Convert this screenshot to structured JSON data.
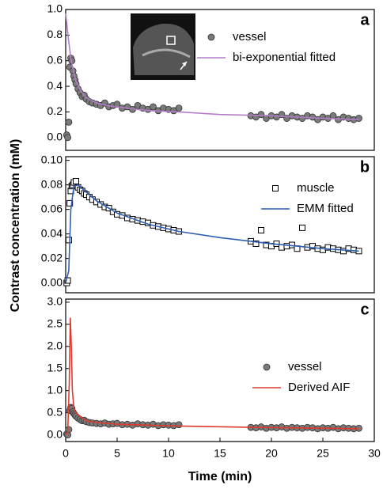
{
  "ylabel": "Contrast concentration (mM)",
  "xlabel": "Time (min)",
  "chart_data": [
    {
      "type": "scatter",
      "label": "a",
      "xlim": [
        0,
        30
      ],
      "ylim": [
        -0.1,
        1.0
      ],
      "yticks": [
        {
          "value": 0,
          "label": "0.0"
        },
        0.2,
        0.4,
        0.6,
        0.8,
        {
          "value": 1,
          "label": "1.0"
        }
      ],
      "series": [
        {
          "name": "vessel",
          "type": "scatter",
          "marker": "circle",
          "color": "#7a7a7a",
          "x": [
            0.1,
            0.2,
            0.3,
            0.4,
            0.5,
            0.6,
            0.7,
            0.8,
            0.9,
            1.0,
            1.2,
            1.4,
            1.6,
            1.8,
            2.0,
            2.3,
            2.6,
            3.0,
            3.4,
            3.8,
            4.2,
            4.6,
            5.0,
            5.5,
            6.0,
            6.5,
            7.0,
            7.5,
            8.0,
            8.5,
            9.0,
            9.5,
            10.0,
            10.5,
            11.0,
            18.0,
            18.5,
            19.0,
            19.5,
            20.0,
            20.5,
            21.0,
            21.5,
            22.0,
            22.5,
            23.0,
            23.5,
            24.0,
            24.5,
            25.0,
            25.5,
            26.0,
            26.5,
            27.0,
            27.5,
            28.0,
            28.5
          ],
          "values": [
            0.02,
            0.0,
            0.12,
            0.55,
            0.62,
            0.6,
            0.52,
            0.48,
            0.45,
            0.42,
            0.38,
            0.35,
            0.32,
            0.33,
            0.3,
            0.28,
            0.27,
            0.26,
            0.25,
            0.27,
            0.24,
            0.25,
            0.26,
            0.23,
            0.24,
            0.22,
            0.25,
            0.23,
            0.22,
            0.24,
            0.21,
            0.23,
            0.22,
            0.21,
            0.23,
            0.17,
            0.16,
            0.18,
            0.15,
            0.17,
            0.16,
            0.18,
            0.15,
            0.17,
            0.16,
            0.15,
            0.17,
            0.16,
            0.14,
            0.16,
            0.15,
            0.17,
            0.14,
            0.16,
            0.15,
            0.14,
            0.15
          ]
        },
        {
          "name": "bi-exponential fitted",
          "type": "line",
          "color": "#b47cc8",
          "x": [
            0,
            0.25,
            0.5,
            0.75,
            1,
            1.5,
            2,
            3,
            4,
            6,
            8,
            11,
            15,
            20,
            25,
            28.5
          ],
          "values": [
            0.97,
            0.78,
            0.62,
            0.52,
            0.44,
            0.36,
            0.31,
            0.27,
            0.25,
            0.23,
            0.21,
            0.2,
            0.18,
            0.17,
            0.15,
            0.14
          ]
        }
      ]
    },
    {
      "type": "scatter",
      "label": "b",
      "xlim": [
        0,
        30
      ],
      "ylim": [
        -0.008,
        0.103
      ],
      "yticks": [
        {
          "value": 0,
          "label": "0.00"
        },
        0.02,
        0.04,
        0.06,
        0.08,
        {
          "value": 0.1,
          "label": "0.10"
        }
      ],
      "series": [
        {
          "name": "muscle",
          "type": "scatter",
          "marker": "square",
          "color": "#ffffff",
          "x": [
            0.1,
            0.2,
            0.3,
            0.4,
            0.5,
            0.6,
            0.7,
            0.8,
            1.0,
            1.2,
            1.4,
            1.6,
            1.8,
            2.0,
            2.3,
            2.6,
            3.0,
            3.4,
            3.8,
            4.2,
            4.6,
            5.0,
            5.5,
            6.0,
            6.5,
            7.0,
            7.5,
            8.0,
            8.5,
            9.0,
            9.5,
            10.0,
            10.5,
            11.0,
            18.0,
            18.5,
            19.0,
            19.5,
            20.0,
            20.5,
            21.0,
            21.5,
            22.0,
            22.5,
            23.0,
            23.5,
            24.0,
            24.5,
            25.0,
            25.5,
            26.0,
            26.5,
            27.0,
            27.5,
            28.0,
            28.5
          ],
          "values": [
            0.0,
            0.002,
            0.035,
            0.065,
            0.075,
            0.079,
            0.08,
            0.082,
            0.083,
            0.078,
            0.076,
            0.075,
            0.073,
            0.072,
            0.07,
            0.068,
            0.066,
            0.064,
            0.062,
            0.061,
            0.058,
            0.056,
            0.055,
            0.053,
            0.052,
            0.051,
            0.05,
            0.049,
            0.047,
            0.046,
            0.045,
            0.044,
            0.043,
            0.042,
            0.034,
            0.032,
            0.043,
            0.031,
            0.03,
            0.032,
            0.029,
            0.03,
            0.031,
            0.028,
            0.045,
            0.029,
            0.03,
            0.028,
            0.027,
            0.029,
            0.028,
            0.027,
            0.026,
            0.028,
            0.027,
            0.026
          ]
        },
        {
          "name": "EMM fitted",
          "type": "line",
          "color": "#2f5fb3",
          "x": [
            0,
            0.3,
            0.5,
            0.8,
            1.2,
            2,
            3,
            5,
            8,
            11,
            15,
            20,
            25,
            28.5
          ],
          "values": [
            0,
            0.01,
            0.06,
            0.079,
            0.08,
            0.074,
            0.067,
            0.057,
            0.048,
            0.042,
            0.037,
            0.032,
            0.028,
            0.026
          ]
        }
      ]
    },
    {
      "type": "scatter",
      "label": "c",
      "xlim": [
        0,
        30
      ],
      "ylim": [
        -0.15,
        3.07
      ],
      "xticks": [
        0,
        5,
        10,
        15,
        20,
        25,
        30
      ],
      "yticks": [
        {
          "value": 0,
          "label": "0.0"
        },
        0.5,
        {
          "value": 1,
          "label": "1.0"
        },
        1.5,
        {
          "value": 2,
          "label": "2.0"
        },
        2.5,
        {
          "value": 3,
          "label": "3.0"
        }
      ],
      "series": [
        {
          "name": "vessel",
          "type": "scatter",
          "marker": "circle",
          "color": "#7a7a7a",
          "x": [
            0.1,
            0.2,
            0.3,
            0.4,
            0.5,
            0.6,
            0.7,
            0.8,
            0.9,
            1.0,
            1.2,
            1.4,
            1.6,
            1.8,
            2.0,
            2.3,
            2.6,
            3.0,
            3.4,
            3.8,
            4.2,
            4.6,
            5.0,
            5.5,
            6.0,
            6.5,
            7.0,
            7.5,
            8.0,
            8.5,
            9.0,
            9.5,
            10.0,
            10.5,
            11.0,
            18.0,
            18.5,
            19.0,
            19.5,
            20.0,
            20.5,
            21.0,
            21.5,
            22.0,
            22.5,
            23.0,
            23.5,
            24.0,
            24.5,
            25.0,
            25.5,
            26.0,
            26.5,
            27.0,
            27.5,
            28.0,
            28.5
          ],
          "values": [
            0.02,
            0.0,
            0.12,
            0.55,
            0.62,
            0.6,
            0.52,
            0.48,
            0.45,
            0.42,
            0.38,
            0.35,
            0.32,
            0.33,
            0.3,
            0.28,
            0.27,
            0.26,
            0.25,
            0.27,
            0.24,
            0.25,
            0.26,
            0.23,
            0.24,
            0.22,
            0.25,
            0.23,
            0.22,
            0.24,
            0.21,
            0.23,
            0.22,
            0.21,
            0.23,
            0.17,
            0.16,
            0.18,
            0.15,
            0.17,
            0.16,
            0.18,
            0.15,
            0.17,
            0.16,
            0.15,
            0.17,
            0.16,
            0.14,
            0.16,
            0.15,
            0.17,
            0.14,
            0.16,
            0.15,
            0.14,
            0.15
          ]
        },
        {
          "name": "Derived AIF",
          "type": "line",
          "color": "#e03a2e",
          "x": [
            0,
            0.2,
            0.35,
            0.45,
            0.55,
            0.65,
            0.8,
            1.0,
            1.5,
            2,
            3,
            5,
            8,
            11,
            18,
            22,
            25,
            28.5
          ],
          "values": [
            0,
            0.05,
            1.2,
            2.65,
            2.0,
            1.0,
            0.6,
            0.5,
            0.4,
            0.32,
            0.28,
            0.24,
            0.22,
            0.2,
            0.17,
            0.16,
            0.15,
            0.14
          ]
        }
      ]
    }
  ]
}
